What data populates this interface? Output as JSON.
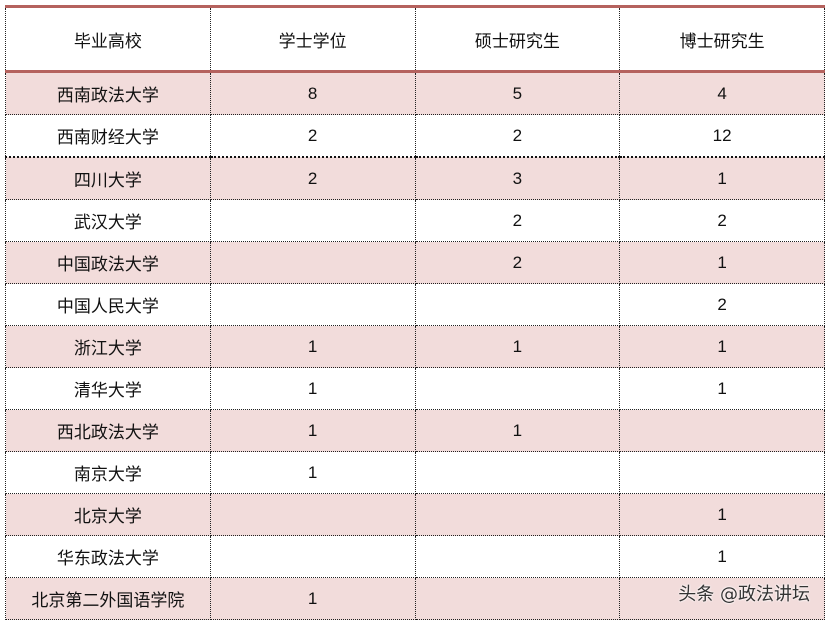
{
  "table": {
    "headers": [
      "毕业高校",
      "学士学位",
      "硕士研究生",
      "博士研究生"
    ],
    "rows": [
      [
        "西南政法大学",
        "8",
        "5",
        "4"
      ],
      [
        "西南财经大学",
        "2",
        "2",
        "12"
      ],
      [
        "四川大学",
        "2",
        "3",
        "1"
      ],
      [
        "武汉大学",
        "",
        "2",
        "2"
      ],
      [
        "中国政法大学",
        "",
        "2",
        "1"
      ],
      [
        "中国人民大学",
        "",
        "",
        "2"
      ],
      [
        "浙江大学",
        "1",
        "1",
        "1"
      ],
      [
        "清华大学",
        "1",
        "",
        "1"
      ],
      [
        "西北政法大学",
        "1",
        "1",
        ""
      ],
      [
        "南京大学",
        "1",
        "",
        ""
      ],
      [
        "北京大学",
        "",
        "",
        "1"
      ],
      [
        "华东政法大学",
        "",
        "",
        "1"
      ],
      [
        "北京第二外国语学院",
        "1",
        "",
        ""
      ]
    ]
  },
  "watermark": "头条 @政法讲坛",
  "colors": {
    "header_border": "#b5625e",
    "stripe": "#f2dcdb"
  }
}
